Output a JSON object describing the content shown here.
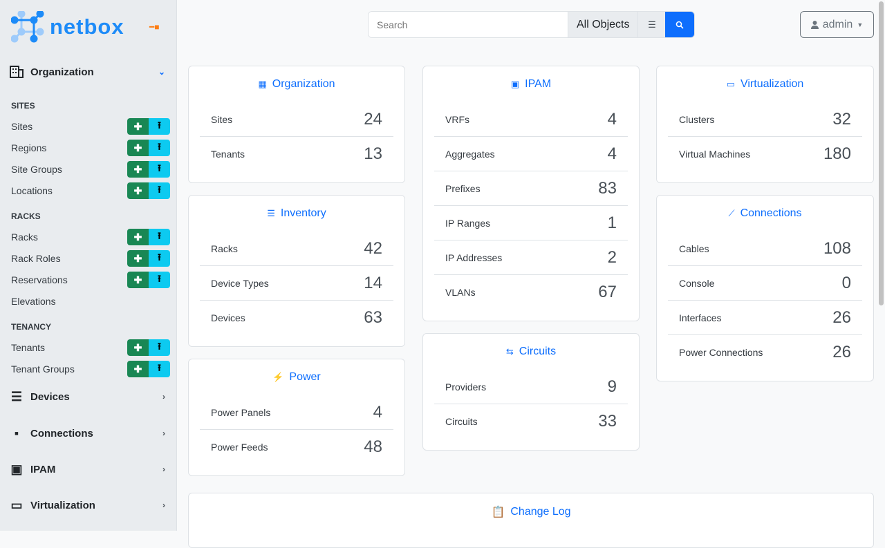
{
  "app": {
    "logo_text": "netbox"
  },
  "sidebar": {
    "org_label": "Organization",
    "groups": [
      {
        "title": "SITES",
        "items": [
          {
            "label": "Sites",
            "buttons": true
          },
          {
            "label": "Regions",
            "buttons": true
          },
          {
            "label": "Site Groups",
            "buttons": true
          },
          {
            "label": "Locations",
            "buttons": true
          }
        ]
      },
      {
        "title": "RACKS",
        "items": [
          {
            "label": "Racks",
            "buttons": true
          },
          {
            "label": "Rack Roles",
            "buttons": true
          },
          {
            "label": "Reservations",
            "buttons": true
          },
          {
            "label": "Elevations",
            "buttons": false
          }
        ]
      },
      {
        "title": "TENANCY",
        "items": [
          {
            "label": "Tenants",
            "buttons": true
          },
          {
            "label": "Tenant Groups",
            "buttons": true
          }
        ]
      }
    ],
    "sections": [
      {
        "label": "Devices",
        "icon": "server-icon"
      },
      {
        "label": "Connections",
        "icon": "ethernet-icon"
      },
      {
        "label": "IPAM",
        "icon": "ipam-icon"
      },
      {
        "label": "Virtualization",
        "icon": "monitor-icon"
      }
    ]
  },
  "search": {
    "placeholder": "Search",
    "scope": "All Objects"
  },
  "user": {
    "name": "admin"
  },
  "columns": [
    [
      {
        "title": "Organization",
        "icon": "building-icon",
        "rows": [
          [
            "Sites",
            "24"
          ],
          [
            "Tenants",
            "13"
          ]
        ]
      },
      {
        "title": "Inventory",
        "icon": "server-icon",
        "rows": [
          [
            "Racks",
            "42"
          ],
          [
            "Device Types",
            "14"
          ],
          [
            "Devices",
            "63"
          ]
        ]
      },
      {
        "title": "Power",
        "icon": "lightning-icon",
        "rows": [
          [
            "Power Panels",
            "4"
          ],
          [
            "Power Feeds",
            "48"
          ]
        ]
      }
    ],
    [
      {
        "title": "IPAM",
        "icon": "ipam-icon",
        "rows": [
          [
            "VRFs",
            "4"
          ],
          [
            "Aggregates",
            "4"
          ],
          [
            "Prefixes",
            "83"
          ],
          [
            "IP Ranges",
            "1"
          ],
          [
            "IP Addresses",
            "2"
          ],
          [
            "VLANs",
            "67"
          ]
        ]
      },
      {
        "title": "Circuits",
        "icon": "circuit-icon",
        "rows": [
          [
            "Providers",
            "9"
          ],
          [
            "Circuits",
            "33"
          ]
        ]
      }
    ],
    [
      {
        "title": "Virtualization",
        "icon": "monitor-icon",
        "rows": [
          [
            "Clusters",
            "32"
          ],
          [
            "Virtual Machines",
            "180"
          ]
        ]
      },
      {
        "title": "Connections",
        "icon": "cable-icon",
        "rows": [
          [
            "Cables",
            "108"
          ],
          [
            "Console",
            "0"
          ],
          [
            "Interfaces",
            "26"
          ],
          [
            "Power Connections",
            "26"
          ]
        ]
      }
    ]
  ],
  "changelog": {
    "title": "Change Log"
  },
  "colors": {
    "accent": "#0d6efd",
    "add": "#198754",
    "import": "#0dcaf0",
    "logo": "#1d8bf8"
  }
}
